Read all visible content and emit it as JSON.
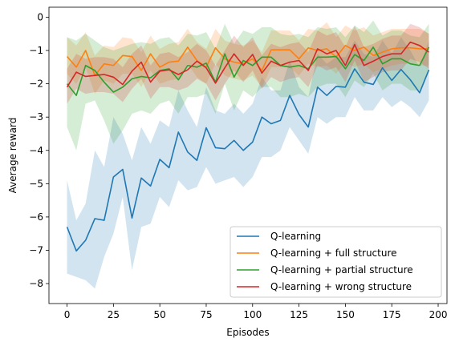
{
  "chart_data": {
    "type": "line",
    "xlabel": "Episodes",
    "ylabel": "Average reward",
    "xlim": [
      -9.75,
      204.75
    ],
    "ylim": [
      -8.6,
      0.3
    ],
    "xticks": [
      0,
      25,
      50,
      75,
      100,
      125,
      150,
      175,
      200
    ],
    "yticks": [
      0,
      -1,
      -2,
      -3,
      -4,
      -5,
      -6,
      -7,
      -8
    ],
    "legend_position": "lower-right",
    "grid": false,
    "band": "shaded range around each series mean",
    "x": [
      0,
      5,
      10,
      15,
      20,
      25,
      30,
      35,
      40,
      45,
      50,
      55,
      60,
      65,
      70,
      75,
      80,
      85,
      90,
      95,
      100,
      105,
      110,
      115,
      120,
      125,
      130,
      135,
      140,
      145,
      150,
      155,
      160,
      165,
      170,
      175,
      180,
      185,
      190,
      195
    ],
    "series": [
      {
        "name": "Q-learning",
        "color": "#1f77b4",
        "values": [
          -6.3,
          -7.02,
          -6.7,
          -6.05,
          -6.1,
          -4.8,
          -4.57,
          -6.03,
          -4.83,
          -5.07,
          -4.27,
          -4.52,
          -3.45,
          -4.05,
          -4.3,
          -3.32,
          -3.92,
          -3.95,
          -3.7,
          -4.0,
          -3.75,
          -3.0,
          -3.2,
          -3.1,
          -2.35,
          -2.92,
          -3.3,
          -2.1,
          -2.35,
          -2.08,
          -2.1,
          -1.55,
          -1.95,
          -2.02,
          -1.52,
          -1.9,
          -1.57,
          -1.88,
          -2.27,
          -1.58
        ],
        "lower": [
          -7.7,
          -7.8,
          -7.9,
          -8.15,
          -7.2,
          -6.5,
          -5.4,
          -7.6,
          -6.3,
          -6.2,
          -5.4,
          -5.7,
          -4.9,
          -5.2,
          -5.1,
          -4.5,
          -5.0,
          -4.9,
          -4.8,
          -5.1,
          -4.8,
          -4.2,
          -4.2,
          -4.0,
          -3.3,
          -3.7,
          -4.1,
          -3.0,
          -3.2,
          -3.0,
          -3.0,
          -2.4,
          -2.8,
          -2.8,
          -2.4,
          -2.7,
          -2.5,
          -2.7,
          -3.0,
          -2.5
        ],
        "upper": [
          -4.9,
          -6.1,
          -5.6,
          -4.0,
          -4.5,
          -3.0,
          -3.5,
          -4.3,
          -3.3,
          -3.8,
          -3.1,
          -3.3,
          -2.2,
          -2.8,
          -3.3,
          -2.1,
          -2.8,
          -2.9,
          -2.6,
          -2.9,
          -2.6,
          -1.8,
          -2.2,
          -2.2,
          -1.3,
          -2.1,
          -2.4,
          -1.1,
          -1.4,
          -1.2,
          -1.2,
          -0.7,
          -1.1,
          -1.2,
          -0.7,
          -1.1,
          -0.6,
          -1.0,
          -1.5,
          -0.7
        ]
      },
      {
        "name": "Q-learning + full structure",
        "color": "#ff7f0e",
        "values": [
          -1.18,
          -1.5,
          -1.0,
          -1.75,
          -1.4,
          -1.45,
          -1.15,
          -1.18,
          -1.6,
          -1.1,
          -1.5,
          -1.35,
          -1.32,
          -0.9,
          -1.3,
          -1.5,
          -0.92,
          -1.25,
          -1.35,
          -1.4,
          -1.25,
          -1.6,
          -0.98,
          -0.98,
          -0.98,
          -1.25,
          -0.92,
          -1.0,
          -0.95,
          -1.2,
          -0.85,
          -1.0,
          -0.9,
          -1.15,
          -1.05,
          -0.95,
          -0.92,
          -0.92,
          -0.95,
          -0.95
        ],
        "lower": [
          -1.7,
          -2.0,
          -1.5,
          -2.3,
          -1.9,
          -2.0,
          -1.7,
          -1.7,
          -2.1,
          -1.6,
          -2.0,
          -1.9,
          -1.85,
          -1.4,
          -1.8,
          -2.0,
          -1.4,
          -1.75,
          -1.85,
          -1.9,
          -1.75,
          -2.1,
          -1.5,
          -1.5,
          -1.5,
          -1.75,
          -1.4,
          -1.5,
          -1.45,
          -1.7,
          -1.35,
          -1.5,
          -1.4,
          -1.65,
          -1.55,
          -1.45,
          -1.4,
          -1.4,
          -1.45,
          -1.45
        ],
        "upper": [
          -0.6,
          -0.85,
          -0.45,
          -1.15,
          -0.85,
          -0.9,
          -0.6,
          -0.65,
          -1.05,
          -0.55,
          -0.95,
          -0.8,
          -0.75,
          -0.35,
          -0.75,
          -0.95,
          -0.35,
          -0.7,
          -0.8,
          -0.85,
          -0.7,
          -1.05,
          -0.4,
          -0.4,
          -0.4,
          -0.7,
          -0.35,
          -0.4,
          -0.15,
          -0.6,
          -0.25,
          -0.4,
          -0.3,
          -0.55,
          -0.45,
          -0.35,
          -0.35,
          -0.35,
          -0.35,
          -0.5
        ]
      },
      {
        "name": "Q-learning + partial structure",
        "color": "#2ca02c",
        "values": [
          -2.0,
          -2.35,
          -1.45,
          -1.6,
          -1.95,
          -2.25,
          -2.1,
          -1.85,
          -1.78,
          -1.82,
          -1.6,
          -1.55,
          -1.88,
          -1.45,
          -1.5,
          -1.38,
          -1.95,
          -1.1,
          -1.8,
          -1.3,
          -1.45,
          -1.2,
          -1.2,
          -1.45,
          -1.5,
          -1.45,
          -1.55,
          -1.2,
          -1.2,
          -1.18,
          -1.55,
          -1.12,
          -1.3,
          -0.9,
          -1.4,
          -1.25,
          -1.25,
          -1.4,
          -1.45,
          -0.9
        ],
        "lower": [
          -3.3,
          -4.0,
          -2.6,
          -2.5,
          -3.1,
          -3.8,
          -3.4,
          -2.9,
          -2.8,
          -2.9,
          -2.6,
          -2.5,
          -2.9,
          -2.4,
          -2.4,
          -2.3,
          -2.9,
          -2.0,
          -2.8,
          -2.2,
          -2.4,
          -2.1,
          -2.1,
          -2.4,
          -2.4,
          -2.3,
          -2.4,
          -2.1,
          -2.0,
          -2.0,
          -2.4,
          -1.9,
          -2.1,
          -1.7,
          -2.2,
          -2.0,
          -2.0,
          -2.2,
          -2.2,
          -1.6
        ],
        "upper": [
          -0.6,
          -0.7,
          -0.5,
          -0.7,
          -0.9,
          -1.0,
          -0.9,
          -0.8,
          -0.75,
          -0.8,
          -0.65,
          -0.6,
          -0.85,
          -0.5,
          -0.55,
          -0.45,
          -0.95,
          -0.2,
          -0.8,
          -0.4,
          -0.5,
          -0.3,
          -0.3,
          -0.5,
          -0.55,
          -0.5,
          -0.6,
          -0.3,
          -0.35,
          -0.3,
          -0.6,
          -0.25,
          -0.45,
          -0.1,
          -0.55,
          -0.4,
          -0.4,
          -0.55,
          -0.6,
          -0.2
        ]
      },
      {
        "name": "Q-learning + wrong structure",
        "color": "#d62728",
        "values": [
          -2.1,
          -1.65,
          -1.78,
          -1.75,
          -1.72,
          -1.8,
          -2.02,
          -1.62,
          -1.35,
          -1.95,
          -1.62,
          -1.58,
          -1.72,
          -1.58,
          -1.32,
          -1.52,
          -1.98,
          -1.52,
          -1.1,
          -1.45,
          -1.12,
          -1.68,
          -1.32,
          -1.45,
          -1.35,
          -1.3,
          -1.6,
          -0.95,
          -1.1,
          -1.0,
          -1.45,
          -0.82,
          -1.45,
          -1.32,
          -1.18,
          -1.1,
          -1.1,
          -0.75,
          -0.85,
          -1.05
        ],
        "lower": [
          -2.6,
          -2.15,
          -2.3,
          -2.25,
          -2.25,
          -2.3,
          -2.55,
          -2.15,
          -1.85,
          -2.45,
          -2.1,
          -2.1,
          -2.2,
          -2.1,
          -1.85,
          -2.0,
          -2.5,
          -2.0,
          -1.6,
          -1.95,
          -1.6,
          -2.15,
          -1.8,
          -1.95,
          -1.85,
          -1.8,
          -2.1,
          -1.45,
          -1.6,
          -1.5,
          -1.95,
          -1.3,
          -1.95,
          -1.8,
          -1.65,
          -1.6,
          -1.6,
          -1.25,
          -1.35,
          -1.55
        ],
        "upper": [
          -1.55,
          -1.1,
          -1.25,
          -1.2,
          -1.2,
          -1.25,
          -1.5,
          -1.1,
          -0.85,
          -1.45,
          -1.1,
          -1.05,
          -1.2,
          -1.05,
          -0.8,
          -1.0,
          -1.45,
          -1.0,
          -0.55,
          -0.9,
          -0.6,
          -1.15,
          -0.8,
          -0.9,
          -0.8,
          -0.75,
          -1.05,
          -0.4,
          -0.55,
          -0.45,
          -0.9,
          -0.25,
          -0.9,
          -0.8,
          -0.65,
          -0.55,
          -0.55,
          -0.2,
          -0.3,
          -0.5
        ]
      }
    ]
  }
}
